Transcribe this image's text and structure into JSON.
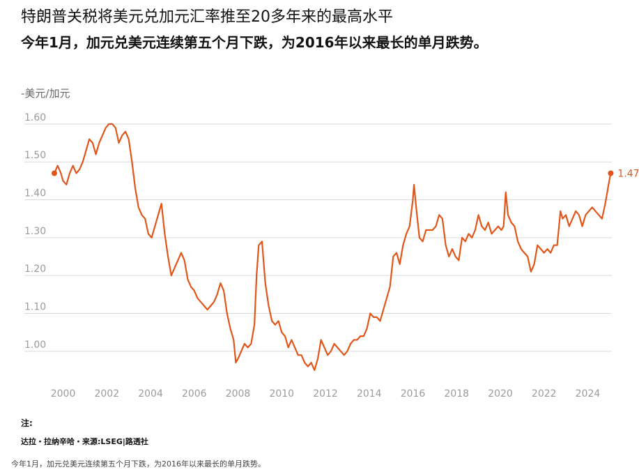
{
  "title": "特朗普关税将美元兑加元汇率推至20多年来的最高水平",
  "subtitle": "今年1月，加元兑美元连续第五个月下跌，为2016年以来最长的单月跌势。",
  "unit_label": "-美元/加元",
  "footer": {
    "note_label": "注:",
    "credit": "达拉・拉纳辛哈・来源:LSEG|路透社",
    "caption": "今年1月，加元兑美元连续第五个月下跌，为2016年以来最长的单月跌势。"
  },
  "colors": {
    "line": "#e0561a",
    "grid": "#d9d9d9",
    "tick": "#9a9a9a"
  },
  "chart_data": {
    "type": "line",
    "title": "特朗普关税将美元兑加元汇率推至20多年来的最高水平",
    "subtitle": "今年1月，加元兑美元连续第五个月下跌，为2016年以来最长的单月跌势。",
    "ylabel": "-美元/加元",
    "xlim": [
      1999.6,
      2025.1
    ],
    "ylim": [
      0.95,
      1.62
    ],
    "yticks": [
      1.0,
      1.1,
      1.2,
      1.3,
      1.4,
      1.5,
      1.6
    ],
    "ytick_labels": [
      "1.00",
      "1.10",
      "1.20",
      "1.30",
      "1.40",
      "1.50",
      "1.60"
    ],
    "xticks": [
      2000,
      2002,
      2004,
      2006,
      2008,
      2010,
      2012,
      2014,
      2016,
      2018,
      2020,
      2022,
      2024
    ],
    "xtick_labels": [
      "2000",
      "2002",
      "2004",
      "2006",
      "2008",
      "2010",
      "2012",
      "2014",
      "2016",
      "2018",
      "2020",
      "2022",
      "2024"
    ],
    "grid": true,
    "end_label": "1.47",
    "series": [
      {
        "x": [
          1999.6,
          1999.75,
          1999.9,
          2000.0,
          2000.15,
          2000.3,
          2000.45,
          2000.6,
          2000.75,
          2000.9,
          2001.05,
          2001.2,
          2001.35,
          2001.5,
          2001.65,
          2001.8,
          2001.95,
          2002.1,
          2002.25,
          2002.4,
          2002.55,
          2002.7,
          2002.85,
          2003.0,
          2003.15,
          2003.3,
          2003.45,
          2003.6,
          2003.75,
          2003.9,
          2004.05,
          2004.2,
          2004.35,
          2004.5,
          2004.65,
          2004.8,
          2004.95,
          2005.1,
          2005.25,
          2005.4,
          2005.55,
          2005.7,
          2005.85,
          2006.0,
          2006.15,
          2006.3,
          2006.45,
          2006.6,
          2006.75,
          2006.9,
          2007.05,
          2007.2,
          2007.35,
          2007.5,
          2007.65,
          2007.8,
          2007.9,
          2008.0,
          2008.15,
          2008.3,
          2008.45,
          2008.6,
          2008.75,
          2008.85,
          2008.95,
          2009.1,
          2009.25,
          2009.4,
          2009.55,
          2009.7,
          2009.85,
          2010.0,
          2010.15,
          2010.3,
          2010.45,
          2010.6,
          2010.75,
          2010.9,
          2011.05,
          2011.2,
          2011.35,
          2011.5,
          2011.65,
          2011.8,
          2011.95,
          2012.1,
          2012.25,
          2012.4,
          2012.55,
          2012.7,
          2012.85,
          2013.0,
          2013.15,
          2013.3,
          2013.45,
          2013.6,
          2013.75,
          2013.9,
          2014.05,
          2014.2,
          2014.35,
          2014.5,
          2014.65,
          2014.8,
          2014.95,
          2015.1,
          2015.25,
          2015.4,
          2015.55,
          2015.7,
          2015.85,
          2016.0,
          2016.05,
          2016.15,
          2016.3,
          2016.45,
          2016.6,
          2016.75,
          2016.9,
          2017.05,
          2017.2,
          2017.35,
          2017.5,
          2017.65,
          2017.8,
          2017.95,
          2018.1,
          2018.25,
          2018.4,
          2018.55,
          2018.7,
          2018.85,
          2019.0,
          2019.15,
          2019.3,
          2019.45,
          2019.6,
          2019.75,
          2019.9,
          2020.05,
          2020.15,
          2020.25,
          2020.35,
          2020.5,
          2020.65,
          2020.8,
          2020.95,
          2021.1,
          2021.25,
          2021.4,
          2021.55,
          2021.7,
          2021.85,
          2022.0,
          2022.15,
          2022.3,
          2022.45,
          2022.6,
          2022.75,
          2022.85,
          2023.0,
          2023.15,
          2023.3,
          2023.45,
          2023.6,
          2023.75,
          2023.9,
          2024.05,
          2024.2,
          2024.35,
          2024.5,
          2024.65,
          2024.8,
          2024.95,
          2025.05
        ],
        "values": [
          1.47,
          1.49,
          1.47,
          1.45,
          1.44,
          1.47,
          1.49,
          1.47,
          1.48,
          1.5,
          1.53,
          1.56,
          1.55,
          1.52,
          1.55,
          1.57,
          1.59,
          1.6,
          1.6,
          1.59,
          1.55,
          1.57,
          1.58,
          1.56,
          1.5,
          1.43,
          1.38,
          1.36,
          1.35,
          1.31,
          1.3,
          1.33,
          1.36,
          1.39,
          1.31,
          1.25,
          1.2,
          1.22,
          1.24,
          1.26,
          1.24,
          1.19,
          1.17,
          1.16,
          1.14,
          1.13,
          1.12,
          1.11,
          1.12,
          1.13,
          1.15,
          1.18,
          1.16,
          1.1,
          1.06,
          1.03,
          0.97,
          0.98,
          1.0,
          1.02,
          1.01,
          1.02,
          1.07,
          1.2,
          1.28,
          1.29,
          1.18,
          1.12,
          1.08,
          1.07,
          1.08,
          1.05,
          1.04,
          1.01,
          1.03,
          1.01,
          0.99,
          0.99,
          0.97,
          0.96,
          0.97,
          0.95,
          0.98,
          1.03,
          1.01,
          0.99,
          1.0,
          1.02,
          1.01,
          1.0,
          0.99,
          1.0,
          1.02,
          1.03,
          1.03,
          1.04,
          1.04,
          1.06,
          1.1,
          1.09,
          1.09,
          1.08,
          1.11,
          1.14,
          1.17,
          1.25,
          1.26,
          1.23,
          1.28,
          1.31,
          1.33,
          1.4,
          1.44,
          1.38,
          1.3,
          1.29,
          1.32,
          1.32,
          1.32,
          1.33,
          1.36,
          1.35,
          1.28,
          1.25,
          1.27,
          1.25,
          1.24,
          1.3,
          1.29,
          1.31,
          1.3,
          1.32,
          1.36,
          1.33,
          1.32,
          1.34,
          1.31,
          1.32,
          1.33,
          1.32,
          1.33,
          1.42,
          1.36,
          1.34,
          1.33,
          1.29,
          1.27,
          1.26,
          1.25,
          1.21,
          1.23,
          1.28,
          1.27,
          1.26,
          1.27,
          1.26,
          1.28,
          1.28,
          1.37,
          1.35,
          1.36,
          1.33,
          1.35,
          1.37,
          1.36,
          1.33,
          1.36,
          1.37,
          1.38,
          1.37,
          1.36,
          1.35,
          1.39,
          1.44,
          1.47
        ]
      }
    ]
  }
}
